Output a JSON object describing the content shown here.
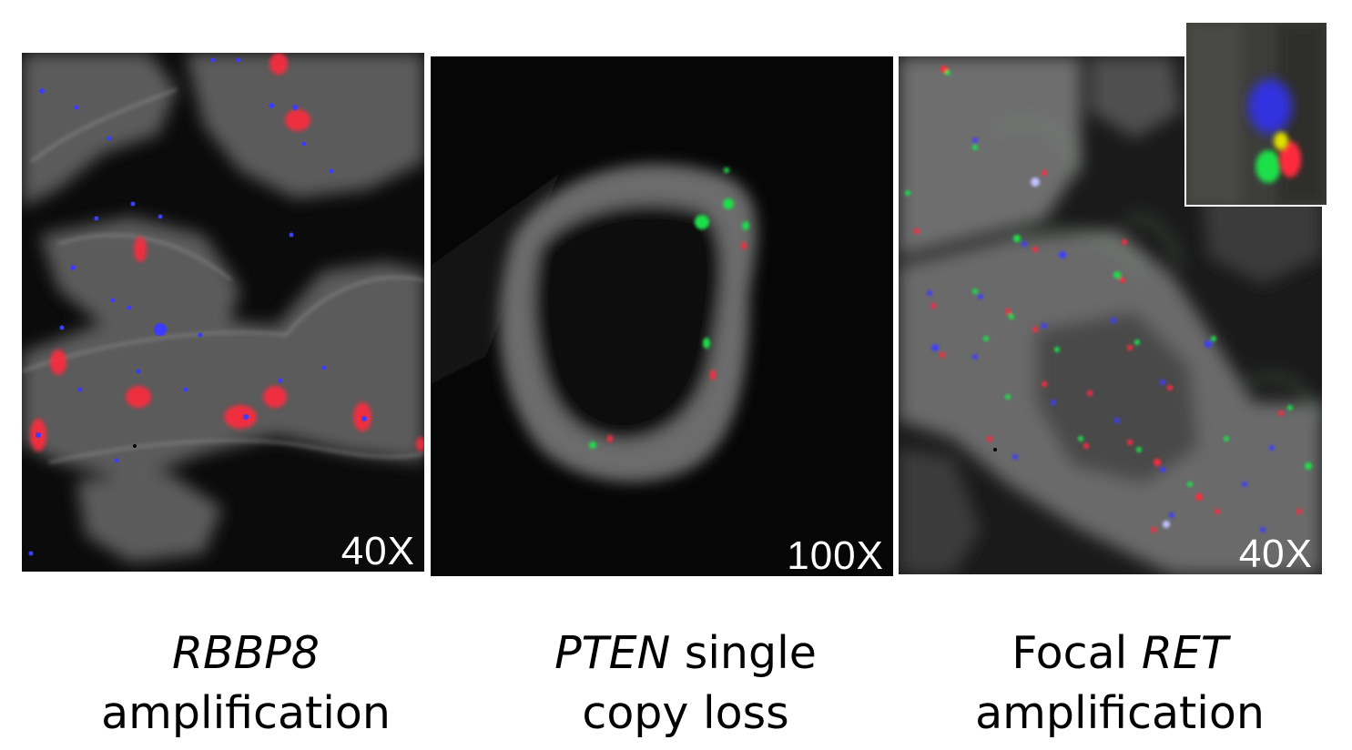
{
  "panels": [
    {
      "magnification": "40X",
      "caption": {
        "line1_gene": "RBBP8",
        "line1_text": "",
        "line2": "amplification"
      }
    },
    {
      "magnification": "100X",
      "caption": {
        "line1_gene": "PTEN",
        "line1_text": " single",
        "line2": "copy loss"
      }
    },
    {
      "magnification": "40X",
      "caption": {
        "line1_prefix": "Focal ",
        "line1_gene": "RET",
        "line2": "amplification"
      }
    }
  ],
  "colors": {
    "background": "#0b0b0b",
    "tissue": "#7a7a7a",
    "probe_red": "#ff2a3c",
    "probe_green": "#1fe04a",
    "probe_blue": "#3c3cff"
  }
}
